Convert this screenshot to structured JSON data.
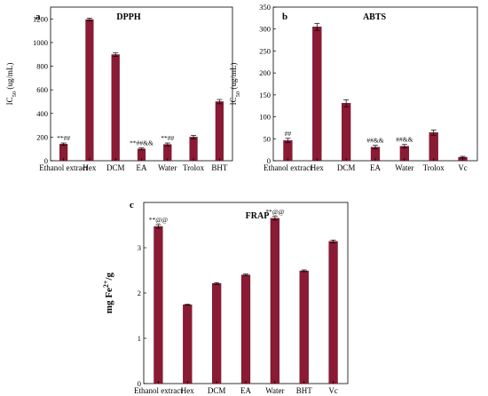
{
  "chart_data": [
    {
      "type": "bar",
      "panel_letter": "a",
      "title": "DPPH",
      "ylabel": "IC50 (ug/mL)",
      "ylabel_main": "IC",
      "ylabel_sub": "50",
      "ylabel_unit": "(ug/mL)",
      "categories": [
        "Ethanol extract",
        "Hex",
        "DCM",
        "EA",
        "Water",
        "Trolox",
        "BHT"
      ],
      "values": [
        140,
        1195,
        898,
        100,
        138,
        200,
        500
      ],
      "errors": [
        10,
        12,
        14,
        8,
        12,
        15,
        18
      ],
      "annotations": [
        "**##",
        "",
        "",
        "**##&&",
        "**##",
        "",
        ""
      ],
      "ylim": [
        0,
        1300
      ],
      "yticks": [
        0,
        200,
        400,
        600,
        800,
        1000,
        1200
      ],
      "color": "#8b1a34"
    },
    {
      "type": "bar",
      "panel_letter": "b",
      "title": "ABTS",
      "ylabel": "IC50 (ug/mL)",
      "ylabel_main": "IC",
      "ylabel_sub": "50",
      "ylabel_unit": "(ug/mL)",
      "categories": [
        "Ethanol extract",
        "Hex",
        "DCM",
        "EA",
        "Water",
        "Trolox",
        "Vc"
      ],
      "values": [
        46,
        305,
        131,
        31,
        33,
        64,
        8
      ],
      "errors": [
        5,
        8,
        8,
        4,
        4,
        6,
        2
      ],
      "annotations": [
        "##",
        "",
        "",
        "##&&",
        "##&&",
        "",
        ""
      ],
      "ylim": [
        0,
        350
      ],
      "yticks": [
        0,
        50,
        100,
        150,
        200,
        250,
        300,
        350
      ],
      "color": "#8b1a34"
    },
    {
      "type": "bar",
      "panel_letter": "c",
      "title": "FRAP",
      "ylabel": "mg Fe2+/g",
      "ylabel_main": "mg Fe",
      "ylabel_sup": "2+",
      "ylabel_unit": "/g",
      "categories": [
        "Ethanol extract",
        "Hex",
        "DCM",
        "EA",
        "Water",
        "BHT",
        "Vc"
      ],
      "values": [
        3.47,
        1.74,
        2.21,
        2.4,
        3.65,
        2.49,
        3.14
      ],
      "errors": [
        0.04,
        0.01,
        0.02,
        0.02,
        0.04,
        0.02,
        0.03
      ],
      "annotations": [
        "**@@",
        "",
        "",
        "",
        "**@@",
        "",
        ""
      ],
      "ylim": [
        0,
        4
      ],
      "yticks": [
        0,
        1,
        2,
        3
      ],
      "color": "#8b1a34"
    }
  ]
}
